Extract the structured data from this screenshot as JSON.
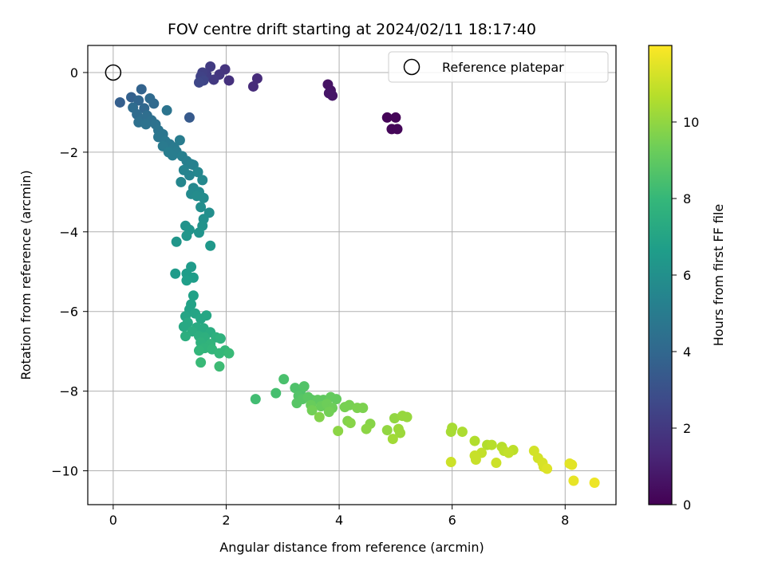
{
  "chart_data": {
    "type": "scatter",
    "title": "FOV centre drift starting at 2024/02/11 18:17:40",
    "xlabel": "Angular distance from reference (arcmin)",
    "ylabel": "Rotation from reference (arcmin)",
    "xlim": [
      -0.45,
      8.9
    ],
    "ylim": [
      -10.85,
      0.68
    ],
    "xticks": [
      0,
      2,
      4,
      6,
      8
    ],
    "yticks": [
      0,
      -2,
      -4,
      -6,
      -8,
      -10
    ],
    "xtick_labels": [
      "0",
      "2",
      "4",
      "6",
      "8"
    ],
    "ytick_labels": [
      "0",
      "−2",
      "−4",
      "−6",
      "−8",
      "−10"
    ],
    "grid": true,
    "legend": {
      "position": "top-right",
      "entries": [
        "Reference platepar"
      ]
    },
    "colorbar": {
      "label": "Hours from first FF file",
      "colormap": "viridis",
      "range": [
        0,
        12
      ],
      "ticks": [
        0,
        2,
        4,
        6,
        8,
        10
      ],
      "tick_labels": [
        "0",
        "2",
        "4",
        "6",
        "8",
        "10"
      ]
    },
    "colormap_stops": [
      "#440154",
      "#482878",
      "#3e4989",
      "#31688e",
      "#26828e",
      "#1f9e89",
      "#35b779",
      "#6ece58",
      "#b5de2b",
      "#fde725"
    ],
    "reference_point": {
      "x": 0,
      "y": 0
    },
    "points": [
      [
        4.85,
        -1.13,
        0.1
      ],
      [
        5.0,
        -1.13,
        0.1
      ],
      [
        4.93,
        -1.42,
        0.2
      ],
      [
        5.03,
        -1.42,
        0.2
      ],
      [
        3.8,
        -0.3,
        0.6
      ],
      [
        3.85,
        -0.45,
        0.6
      ],
      [
        3.82,
        -0.52,
        0.7
      ],
      [
        3.88,
        -0.58,
        0.7
      ],
      [
        2.55,
        -0.15,
        1.5
      ],
      [
        2.48,
        -0.35,
        1.5
      ],
      [
        2.05,
        -0.2,
        1.7
      ],
      [
        1.98,
        0.08,
        1.8
      ],
      [
        1.88,
        -0.05,
        1.9
      ],
      [
        1.78,
        -0.18,
        2.0
      ],
      [
        1.72,
        0.15,
        2.1
      ],
      [
        1.65,
        -0.05,
        2.2
      ],
      [
        1.58,
        0.0,
        2.3
      ],
      [
        1.55,
        -0.1,
        2.4
      ],
      [
        1.6,
        -0.2,
        2.5
      ],
      [
        1.52,
        -0.25,
        2.6
      ],
      [
        1.35,
        -1.13,
        3.4
      ],
      [
        0.12,
        -0.75,
        3.6
      ],
      [
        0.32,
        -0.62,
        3.7
      ],
      [
        0.5,
        -0.42,
        3.8
      ],
      [
        0.45,
        -0.7,
        3.9
      ],
      [
        0.55,
        -0.9,
        4.0
      ],
      [
        0.65,
        -0.65,
        4.1
      ],
      [
        0.72,
        -0.78,
        4.1
      ],
      [
        0.35,
        -0.88,
        4.2
      ],
      [
        0.42,
        -1.05,
        4.2
      ],
      [
        0.5,
        -1.18,
        4.3
      ],
      [
        0.6,
        -1.08,
        4.3
      ],
      [
        0.68,
        -1.2,
        4.4
      ],
      [
        0.45,
        -1.25,
        4.4
      ],
      [
        0.58,
        -1.3,
        4.5
      ],
      [
        0.75,
        -1.3,
        4.5
      ],
      [
        0.95,
        -0.95,
        4.6
      ],
      [
        0.8,
        -1.45,
        4.6
      ],
      [
        0.88,
        -1.55,
        4.7
      ],
      [
        0.8,
        -1.62,
        4.7
      ],
      [
        0.92,
        -1.72,
        4.8
      ],
      [
        1.0,
        -1.8,
        4.8
      ],
      [
        0.88,
        -1.85,
        4.9
      ],
      [
        1.08,
        -1.88,
        4.9
      ],
      [
        1.18,
        -1.7,
        5.0
      ],
      [
        1.12,
        -1.98,
        5.0
      ],
      [
        0.98,
        -2.0,
        5.1
      ],
      [
        1.05,
        -2.08,
        5.1
      ],
      [
        1.22,
        -2.1,
        5.2
      ],
      [
        1.3,
        -2.22,
        5.2
      ],
      [
        1.38,
        -2.3,
        5.3
      ],
      [
        1.42,
        -2.32,
        5.3
      ],
      [
        1.25,
        -2.45,
        5.4
      ],
      [
        1.35,
        -2.58,
        5.4
      ],
      [
        1.5,
        -2.5,
        5.5
      ],
      [
        1.2,
        -2.75,
        5.5
      ],
      [
        1.58,
        -2.7,
        5.6
      ],
      [
        1.42,
        -2.9,
        5.6
      ],
      [
        1.52,
        -3.0,
        5.7
      ],
      [
        1.38,
        -3.05,
        5.7
      ],
      [
        1.48,
        -3.1,
        5.8
      ],
      [
        1.6,
        -3.15,
        5.8
      ],
      [
        1.55,
        -3.38,
        5.9
      ],
      [
        1.7,
        -3.52,
        5.9
      ],
      [
        1.6,
        -3.68,
        6.0
      ],
      [
        1.28,
        -3.85,
        6.1
      ],
      [
        1.58,
        -3.85,
        6.1
      ],
      [
        1.35,
        -3.95,
        6.2
      ],
      [
        1.52,
        -4.02,
        6.2
      ],
      [
        1.3,
        -4.1,
        6.3
      ],
      [
        1.12,
        -4.25,
        6.3
      ],
      [
        1.72,
        -4.35,
        6.4
      ],
      [
        1.38,
        -4.88,
        6.5
      ],
      [
        1.1,
        -5.05,
        6.5
      ],
      [
        1.3,
        -5.05,
        6.6
      ],
      [
        1.42,
        -5.15,
        6.6
      ],
      [
        1.3,
        -5.22,
        6.7
      ],
      [
        1.42,
        -5.6,
        6.8
      ],
      [
        1.38,
        -5.82,
        6.9
      ],
      [
        1.35,
        -5.95,
        6.9
      ],
      [
        1.28,
        -6.12,
        7.0
      ],
      [
        1.45,
        -6.05,
        7.0
      ],
      [
        1.65,
        -6.1,
        7.1
      ],
      [
        1.55,
        -6.18,
        7.1
      ],
      [
        1.32,
        -6.28,
        7.2
      ],
      [
        1.25,
        -6.38,
        7.2
      ],
      [
        1.48,
        -6.4,
        7.3
      ],
      [
        1.6,
        -6.42,
        7.3
      ],
      [
        1.4,
        -6.5,
        7.4
      ],
      [
        1.72,
        -6.52,
        7.4
      ],
      [
        1.28,
        -6.62,
        7.5
      ],
      [
        1.52,
        -6.62,
        7.5
      ],
      [
        1.62,
        -6.65,
        7.6
      ],
      [
        1.82,
        -6.65,
        7.6
      ],
      [
        1.9,
        -6.68,
        7.7
      ],
      [
        1.55,
        -6.78,
        7.7
      ],
      [
        1.72,
        -6.82,
        7.8
      ],
      [
        1.62,
        -6.92,
        7.8
      ],
      [
        1.75,
        -6.95,
        7.9
      ],
      [
        1.52,
        -6.98,
        7.9
      ],
      [
        1.98,
        -6.98,
        8.0
      ],
      [
        1.88,
        -7.05,
        8.0
      ],
      [
        2.05,
        -7.05,
        8.1
      ],
      [
        1.55,
        -7.28,
        8.1
      ],
      [
        1.88,
        -7.38,
        8.2
      ],
      [
        2.52,
        -8.2,
        8.3
      ],
      [
        2.88,
        -8.05,
        8.4
      ],
      [
        3.02,
        -7.7,
        8.5
      ],
      [
        3.22,
        -7.92,
        8.6
      ],
      [
        3.32,
        -7.98,
        8.6
      ],
      [
        3.38,
        -7.88,
        8.7
      ],
      [
        3.28,
        -8.12,
        8.7
      ],
      [
        3.35,
        -8.2,
        8.8
      ],
      [
        3.25,
        -8.3,
        8.8
      ],
      [
        3.45,
        -8.15,
        8.9
      ],
      [
        3.52,
        -8.22,
        8.9
      ],
      [
        3.62,
        -8.22,
        9.0
      ],
      [
        3.72,
        -8.22,
        9.0
      ],
      [
        3.85,
        -8.15,
        9.1
      ],
      [
        3.95,
        -8.2,
        9.1
      ],
      [
        3.5,
        -8.35,
        9.2
      ],
      [
        3.68,
        -8.38,
        9.2
      ],
      [
        3.78,
        -8.32,
        9.3
      ],
      [
        3.88,
        -8.42,
        9.3
      ],
      [
        3.52,
        -8.48,
        9.4
      ],
      [
        3.82,
        -8.52,
        9.4
      ],
      [
        4.1,
        -8.4,
        9.5
      ],
      [
        4.18,
        -8.35,
        9.5
      ],
      [
        4.32,
        -8.42,
        9.6
      ],
      [
        4.42,
        -8.42,
        9.6
      ],
      [
        3.65,
        -8.65,
        9.7
      ],
      [
        4.15,
        -8.75,
        9.7
      ],
      [
        4.2,
        -8.8,
        9.8
      ],
      [
        4.55,
        -8.82,
        9.8
      ],
      [
        4.48,
        -8.95,
        9.9
      ],
      [
        3.98,
        -9.0,
        9.9
      ],
      [
        4.85,
        -8.98,
        10.0
      ],
      [
        4.98,
        -8.68,
        10.0
      ],
      [
        5.12,
        -8.62,
        10.1
      ],
      [
        5.2,
        -8.65,
        10.1
      ],
      [
        5.05,
        -8.95,
        10.2
      ],
      [
        5.08,
        -9.05,
        10.2
      ],
      [
        4.95,
        -9.2,
        10.3
      ],
      [
        6.0,
        -8.92,
        10.4
      ],
      [
        5.98,
        -9.02,
        10.4
      ],
      [
        6.18,
        -9.02,
        10.5
      ],
      [
        6.4,
        -9.25,
        10.6
      ],
      [
        6.62,
        -9.35,
        10.6
      ],
      [
        6.7,
        -9.35,
        10.7
      ],
      [
        6.88,
        -9.4,
        10.7
      ],
      [
        7.08,
        -9.48,
        10.8
      ],
      [
        6.92,
        -9.5,
        10.8
      ],
      [
        7.0,
        -9.55,
        10.9
      ],
      [
        6.52,
        -9.55,
        10.9
      ],
      [
        6.4,
        -9.62,
        11.0
      ],
      [
        6.42,
        -9.72,
        11.0
      ],
      [
        5.98,
        -9.78,
        11.1
      ],
      [
        6.78,
        -9.8,
        11.1
      ],
      [
        7.45,
        -9.5,
        11.2
      ],
      [
        7.52,
        -9.68,
        11.2
      ],
      [
        7.6,
        -9.8,
        11.3
      ],
      [
        7.62,
        -9.9,
        11.3
      ],
      [
        7.68,
        -9.95,
        11.4
      ],
      [
        8.08,
        -9.82,
        11.5
      ],
      [
        8.12,
        -9.85,
        11.5
      ],
      [
        8.15,
        -10.25,
        11.6
      ],
      [
        8.52,
        -10.3,
        11.7
      ]
    ]
  }
}
